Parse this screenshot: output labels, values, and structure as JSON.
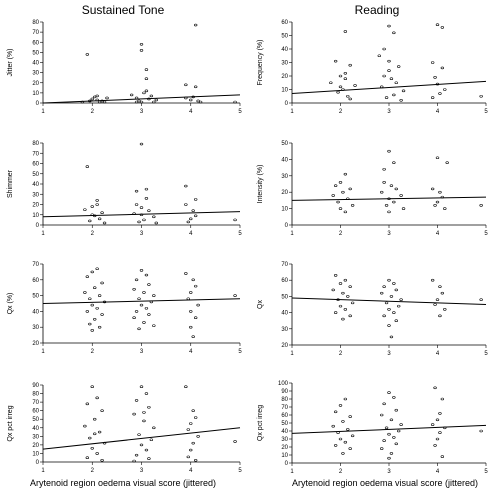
{
  "column_titles": [
    "Sustained Tone",
    "Reading"
  ],
  "xlabel": "Arytenoid region oedema visual score (jittered)",
  "chart_data": [
    {
      "type": "scatter",
      "id": "jitter",
      "ylabel": "Jitter (%)",
      "xlim": [
        1,
        5
      ],
      "ylim": [
        0,
        80
      ],
      "xticks": [
        "1",
        "2",
        "3",
        "4",
        "5"
      ],
      "yticks": [
        "0",
        "10",
        "20",
        "30",
        "40",
        "50",
        "60",
        "70",
        "80"
      ],
      "fit": {
        "x": [
          1,
          5
        ],
        "y": [
          0,
          8
        ]
      },
      "points": [
        [
          1.9,
          48
        ],
        [
          3.0,
          58
        ],
        [
          3.0,
          52
        ],
        [
          4.1,
          77
        ],
        [
          3.1,
          33
        ],
        [
          3.1,
          24
        ],
        [
          3.9,
          18
        ],
        [
          4.1,
          16
        ],
        [
          2.0,
          4
        ],
        [
          2.1,
          3
        ],
        [
          2.2,
          2
        ],
        [
          1.8,
          1
        ],
        [
          2.3,
          5
        ],
        [
          2.05,
          6
        ],
        [
          2.9,
          5
        ],
        [
          3.2,
          7
        ],
        [
          3.3,
          3
        ],
        [
          2.8,
          8
        ],
        [
          3.05,
          10
        ],
        [
          3.15,
          4
        ],
        [
          2.95,
          2
        ],
        [
          3.25,
          1
        ],
        [
          3.9,
          5
        ],
        [
          4.0,
          3
        ],
        [
          4.05,
          6
        ],
        [
          4.15,
          2
        ],
        [
          4.2,
          1
        ],
        [
          4.9,
          1
        ],
        [
          2.15,
          1
        ],
        [
          2.25,
          0.5
        ],
        [
          1.95,
          2
        ],
        [
          2.1,
          7
        ],
        [
          3.1,
          12
        ],
        [
          2.9,
          1
        ],
        [
          3.0,
          0.5
        ]
      ]
    },
    {
      "type": "scatter",
      "id": "frequency",
      "ylabel": "Frequency (%)",
      "xlim": [
        1,
        5
      ],
      "ylim": [
        0,
        60
      ],
      "xticks": [
        "1",
        "2",
        "3",
        "4",
        "5"
      ],
      "yticks": [
        "0",
        "10",
        "20",
        "30",
        "40",
        "50",
        "60"
      ],
      "fit": {
        "x": [
          1,
          5
        ],
        "y": [
          7,
          16
        ]
      },
      "points": [
        [
          3.0,
          57
        ],
        [
          4.0,
          58
        ],
        [
          4.1,
          56
        ],
        [
          2.1,
          53
        ],
        [
          3.1,
          52
        ],
        [
          2.9,
          40
        ],
        [
          2.8,
          35
        ],
        [
          1.9,
          31
        ],
        [
          2.2,
          28
        ],
        [
          3.0,
          31
        ],
        [
          3.2,
          27
        ],
        [
          3.9,
          30
        ],
        [
          4.1,
          26
        ],
        [
          2.0,
          20
        ],
        [
          2.1,
          18
        ],
        [
          1.8,
          15
        ],
        [
          2.3,
          13
        ],
        [
          2.05,
          10
        ],
        [
          1.95,
          8
        ],
        [
          2.15,
          5
        ],
        [
          2.2,
          3
        ],
        [
          2.9,
          20
        ],
        [
          3.05,
          18
        ],
        [
          3.15,
          15
        ],
        [
          2.85,
          12
        ],
        [
          3.3,
          9
        ],
        [
          3.1,
          6
        ],
        [
          2.95,
          4
        ],
        [
          3.25,
          2
        ],
        [
          3.95,
          19
        ],
        [
          4.0,
          14
        ],
        [
          4.15,
          10
        ],
        [
          4.05,
          7
        ],
        [
          3.9,
          4
        ],
        [
          4.9,
          5
        ],
        [
          2.1,
          22
        ],
        [
          3.0,
          24
        ],
        [
          2.0,
          12
        ]
      ]
    },
    {
      "type": "scatter",
      "id": "shimmer",
      "ylabel": "Shimmer",
      "xlim": [
        1,
        5
      ],
      "ylim": [
        0,
        80
      ],
      "xticks": [
        "1",
        "2",
        "3",
        "4",
        "5"
      ],
      "yticks": [
        "0",
        "10",
        "20",
        "30",
        "40",
        "50",
        "60",
        "70",
        "80"
      ],
      "fit": {
        "x": [
          1,
          5
        ],
        "y": [
          8,
          13
        ]
      },
      "points": [
        [
          1.9,
          57
        ],
        [
          3.0,
          79
        ],
        [
          3.1,
          35
        ],
        [
          2.9,
          33
        ],
        [
          3.9,
          38
        ],
        [
          2.1,
          20
        ],
        [
          2.0,
          18
        ],
        [
          1.85,
          15
        ],
        [
          2.2,
          12
        ],
        [
          2.05,
          9
        ],
        [
          2.15,
          6
        ],
        [
          1.95,
          4
        ],
        [
          2.25,
          2
        ],
        [
          2.9,
          20
        ],
        [
          3.0,
          17
        ],
        [
          3.15,
          14
        ],
        [
          2.85,
          11
        ],
        [
          3.25,
          8
        ],
        [
          3.05,
          5
        ],
        [
          2.95,
          3
        ],
        [
          3.3,
          2
        ],
        [
          3.9,
          20
        ],
        [
          4.05,
          14
        ],
        [
          4.1,
          9
        ],
        [
          4.0,
          6
        ],
        [
          3.95,
          3
        ],
        [
          4.9,
          5
        ],
        [
          2.1,
          24
        ],
        [
          3.1,
          26
        ],
        [
          4.1,
          25
        ],
        [
          2.0,
          10
        ],
        [
          3.0,
          10
        ]
      ]
    },
    {
      "type": "scatter",
      "id": "intensity",
      "ylabel": "Intensity (%)",
      "xlim": [
        1,
        5
      ],
      "ylim": [
        0,
        50
      ],
      "xticks": [
        "1",
        "2",
        "3",
        "4",
        "5"
      ],
      "yticks": [
        "0",
        "10",
        "20",
        "30",
        "40",
        "50"
      ],
      "fit": {
        "x": [
          1,
          5
        ],
        "y": [
          15,
          17
        ]
      },
      "points": [
        [
          3.0,
          45
        ],
        [
          4.0,
          41
        ],
        [
          3.1,
          38
        ],
        [
          4.2,
          38
        ],
        [
          2.9,
          34
        ],
        [
          2.1,
          31
        ],
        [
          2.0,
          26
        ],
        [
          1.9,
          24
        ],
        [
          2.2,
          22
        ],
        [
          2.05,
          20
        ],
        [
          1.85,
          18
        ],
        [
          2.15,
          16
        ],
        [
          1.95,
          14
        ],
        [
          2.25,
          12
        ],
        [
          2.0,
          10
        ],
        [
          2.1,
          8
        ],
        [
          2.9,
          26
        ],
        [
          3.05,
          24
        ],
        [
          3.15,
          22
        ],
        [
          2.85,
          20
        ],
        [
          3.25,
          18
        ],
        [
          3.0,
          16
        ],
        [
          3.1,
          14
        ],
        [
          2.95,
          12
        ],
        [
          3.3,
          10
        ],
        [
          3.0,
          8
        ],
        [
          3.9,
          22
        ],
        [
          4.05,
          20
        ],
        [
          4.1,
          17
        ],
        [
          4.0,
          14
        ],
        [
          3.95,
          12
        ],
        [
          4.15,
          10
        ],
        [
          4.9,
          12
        ]
      ]
    },
    {
      "type": "scatter",
      "id": "qx_sustained",
      "ylabel": "Qx (%)",
      "xlim": [
        1,
        5
      ],
      "ylim": [
        20,
        70
      ],
      "xticks": [
        "1",
        "2",
        "3",
        "4",
        "5"
      ],
      "yticks": [
        "20",
        "30",
        "40",
        "50",
        "60",
        "70"
      ],
      "fit": {
        "x": [
          1,
          5
        ],
        "y": [
          45,
          48
        ]
      },
      "points": [
        [
          2.1,
          67
        ],
        [
          2.0,
          65
        ],
        [
          1.9,
          62
        ],
        [
          2.2,
          58
        ],
        [
          2.05,
          55
        ],
        [
          1.85,
          52
        ],
        [
          2.15,
          50
        ],
        [
          1.95,
          48
        ],
        [
          2.25,
          46
        ],
        [
          2.0,
          44
        ],
        [
          2.1,
          42
        ],
        [
          1.9,
          40
        ],
        [
          2.2,
          38
        ],
        [
          2.05,
          35
        ],
        [
          1.95,
          32
        ],
        [
          2.15,
          30
        ],
        [
          2.0,
          28
        ],
        [
          3.0,
          66
        ],
        [
          3.1,
          63
        ],
        [
          2.9,
          60
        ],
        [
          3.15,
          57
        ],
        [
          2.85,
          54
        ],
        [
          3.05,
          52
        ],
        [
          3.25,
          50
        ],
        [
          2.95,
          48
        ],
        [
          3.2,
          46
        ],
        [
          3.0,
          44
        ],
        [
          3.1,
          42
        ],
        [
          2.9,
          40
        ],
        [
          3.15,
          38
        ],
        [
          2.85,
          36
        ],
        [
          3.05,
          33
        ],
        [
          3.25,
          31
        ],
        [
          2.95,
          29
        ],
        [
          3.9,
          64
        ],
        [
          4.05,
          60
        ],
        [
          4.1,
          56
        ],
        [
          4.0,
          52
        ],
        [
          3.95,
          48
        ],
        [
          4.15,
          44
        ],
        [
          4.0,
          40
        ],
        [
          4.1,
          36
        ],
        [
          4.0,
          30
        ],
        [
          4.05,
          24
        ],
        [
          4.9,
          50
        ]
      ]
    },
    {
      "type": "scatter",
      "id": "qx_reading",
      "ylabel": "Qx",
      "xlim": [
        1,
        5
      ],
      "ylim": [
        20,
        70
      ],
      "xticks": [
        "1",
        "2",
        "3",
        "4",
        "5"
      ],
      "yticks": [
        "20",
        "30",
        "40",
        "50",
        "60",
        "70"
      ],
      "fit": {
        "x": [
          1,
          5
        ],
        "y": [
          49,
          45
        ]
      },
      "points": [
        [
          1.9,
          63
        ],
        [
          2.1,
          60
        ],
        [
          2.0,
          58
        ],
        [
          2.2,
          56
        ],
        [
          1.85,
          54
        ],
        [
          2.05,
          52
        ],
        [
          2.15,
          50
        ],
        [
          1.95,
          48
        ],
        [
          2.25,
          46
        ],
        [
          2.0,
          44
        ],
        [
          2.1,
          42
        ],
        [
          1.9,
          40
        ],
        [
          2.2,
          38
        ],
        [
          2.05,
          36
        ],
        [
          3.0,
          60
        ],
        [
          3.1,
          58
        ],
        [
          2.9,
          56
        ],
        [
          3.15,
          54
        ],
        [
          2.85,
          52
        ],
        [
          3.05,
          50
        ],
        [
          3.25,
          48
        ],
        [
          2.95,
          46
        ],
        [
          3.2,
          44
        ],
        [
          3.0,
          42
        ],
        [
          3.1,
          40
        ],
        [
          2.9,
          38
        ],
        [
          3.15,
          35
        ],
        [
          3.0,
          32
        ],
        [
          3.05,
          25
        ],
        [
          3.9,
          60
        ],
        [
          4.05,
          56
        ],
        [
          4.1,
          52
        ],
        [
          4.0,
          48
        ],
        [
          3.95,
          45
        ],
        [
          4.15,
          42
        ],
        [
          4.05,
          38
        ],
        [
          4.9,
          48
        ]
      ]
    },
    {
      "type": "scatter",
      "id": "qx_pct_irreg_sustained",
      "ylabel": "Qx pct irreg",
      "xlim": [
        1,
        5
      ],
      "ylim": [
        0,
        90
      ],
      "xticks": [
        "1",
        "2",
        "3",
        "4",
        "5"
      ],
      "yticks": [
        "0",
        "10",
        "20",
        "30",
        "40",
        "50",
        "60",
        "70",
        "80",
        "90"
      ],
      "fit": {
        "x": [
          1,
          5
        ],
        "y": [
          15,
          40
        ]
      },
      "points": [
        [
          2.0,
          88
        ],
        [
          2.1,
          75
        ],
        [
          1.9,
          68
        ],
        [
          2.2,
          60
        ],
        [
          2.05,
          50
        ],
        [
          1.85,
          42
        ],
        [
          2.15,
          35
        ],
        [
          1.95,
          28
        ],
        [
          2.25,
          22
        ],
        [
          2.0,
          16
        ],
        [
          2.1,
          10
        ],
        [
          1.9,
          5
        ],
        [
          2.2,
          2
        ],
        [
          3.0,
          88
        ],
        [
          3.1,
          80
        ],
        [
          2.9,
          72
        ],
        [
          3.15,
          64
        ],
        [
          2.85,
          56
        ],
        [
          3.05,
          48
        ],
        [
          3.25,
          40
        ],
        [
          2.95,
          32
        ],
        [
          3.2,
          26
        ],
        [
          3.0,
          20
        ],
        [
          3.1,
          14
        ],
        [
          2.9,
          8
        ],
        [
          3.15,
          4
        ],
        [
          2.85,
          1
        ],
        [
          3.9,
          88
        ],
        [
          4.05,
          60
        ],
        [
          4.1,
          52
        ],
        [
          4.0,
          45
        ],
        [
          3.95,
          38
        ],
        [
          4.15,
          30
        ],
        [
          4.05,
          22
        ],
        [
          4.0,
          14
        ],
        [
          3.95,
          6
        ],
        [
          4.1,
          2
        ],
        [
          4.9,
          24
        ],
        [
          3.05,
          58
        ],
        [
          2.05,
          33
        ]
      ]
    },
    {
      "type": "scatter",
      "id": "qx_pct_irreg_reading",
      "ylabel": "Qx pct irreg",
      "xlim": [
        1,
        5
      ],
      "ylim": [
        0,
        100
      ],
      "xticks": [
        "1",
        "2",
        "3",
        "4",
        "5"
      ],
      "yticks": [
        "0",
        "10",
        "20",
        "30",
        "40",
        "50",
        "60",
        "70",
        "80",
        "90",
        "100"
      ],
      "fit": {
        "x": [
          1,
          5
        ],
        "y": [
          37,
          47
        ]
      },
      "points": [
        [
          2.1,
          80
        ],
        [
          2.0,
          72
        ],
        [
          1.9,
          64
        ],
        [
          2.2,
          58
        ],
        [
          2.05,
          52
        ],
        [
          1.85,
          46
        ],
        [
          2.15,
          42
        ],
        [
          1.95,
          38
        ],
        [
          2.25,
          34
        ],
        [
          2.0,
          30
        ],
        [
          2.1,
          26
        ],
        [
          1.9,
          22
        ],
        [
          2.2,
          18
        ],
        [
          2.05,
          12
        ],
        [
          3.0,
          88
        ],
        [
          3.1,
          82
        ],
        [
          2.9,
          74
        ],
        [
          3.15,
          66
        ],
        [
          2.85,
          60
        ],
        [
          3.05,
          54
        ],
        [
          3.25,
          48
        ],
        [
          2.95,
          44
        ],
        [
          3.2,
          40
        ],
        [
          3.0,
          36
        ],
        [
          3.1,
          32
        ],
        [
          2.9,
          28
        ],
        [
          3.15,
          24
        ],
        [
          2.85,
          18
        ],
        [
          3.05,
          12
        ],
        [
          3.0,
          6
        ],
        [
          3.95,
          94
        ],
        [
          4.1,
          80
        ],
        [
          4.05,
          62
        ],
        [
          4.0,
          54
        ],
        [
          3.9,
          48
        ],
        [
          4.15,
          44
        ],
        [
          4.05,
          38
        ],
        [
          4.0,
          30
        ],
        [
          3.95,
          22
        ],
        [
          4.1,
          8
        ],
        [
          4.9,
          40
        ]
      ]
    }
  ]
}
